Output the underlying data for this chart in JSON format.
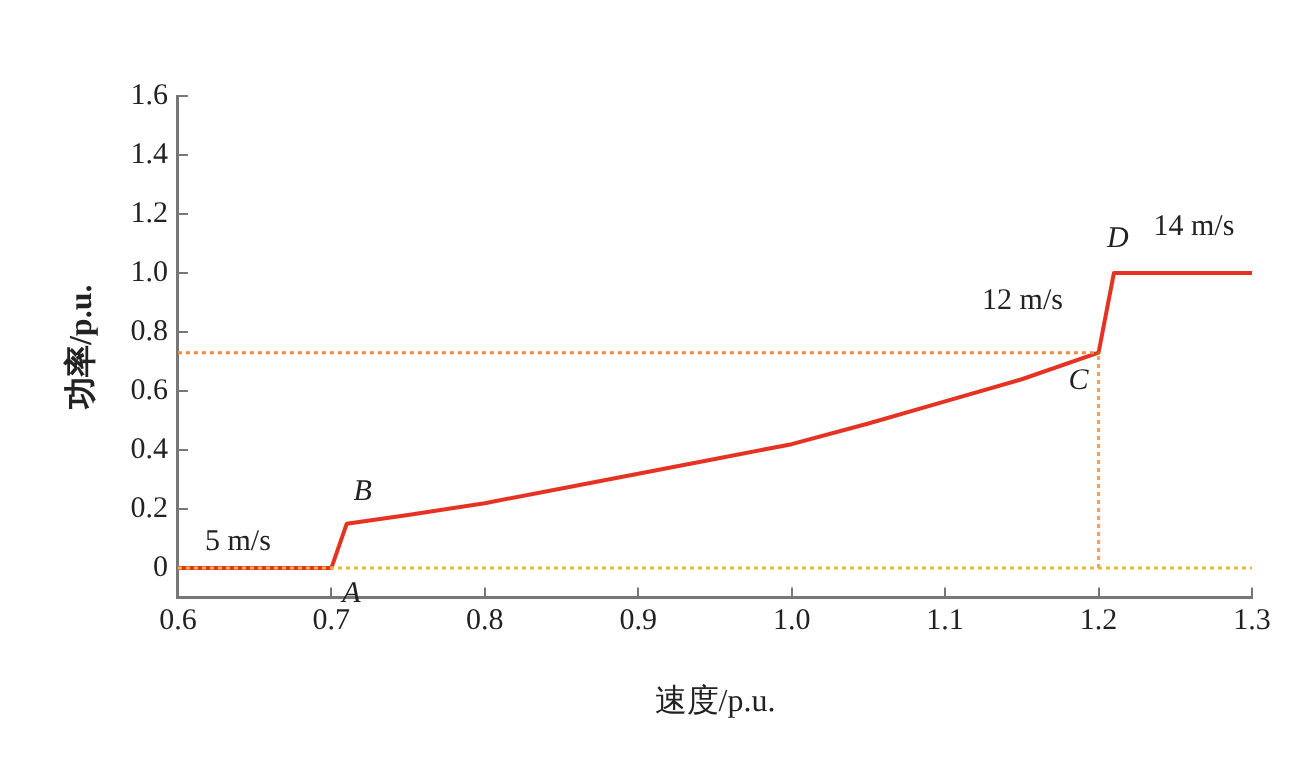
{
  "chart_data": {
    "type": "line",
    "xlabel": "速度/p.u.",
    "ylabel": "功率/p.u.",
    "xlim": [
      0.6,
      1.3
    ],
    "xticks": [
      0.6,
      0.7,
      0.8,
      0.9,
      {
        "value": 1,
        "label": "1.0"
      },
      1.1,
      1.2,
      1.3
    ],
    "ylim": [
      -0.1,
      1.6
    ],
    "yticks": [
      0,
      0.2,
      0.4,
      0.6,
      0.8,
      {
        "value": 1,
        "label": "1.0"
      },
      1.2,
      1.4,
      1.6
    ],
    "grid": false,
    "legend": false,
    "marker": "none",
    "series": [
      {
        "color": "#f0b43c",
        "line_style": "dotted",
        "x": [
          0.6,
          1.3
        ],
        "values": [
          0,
          0
        ]
      },
      {
        "color": "#f08a3c",
        "line_style": "dotted",
        "x": [
          0.6,
          1.2
        ],
        "values": [
          0.73,
          0.73
        ]
      },
      {
        "color": "#f0a060",
        "line_style": "dotted",
        "x": [
          1.2,
          1.2
        ],
        "values": [
          0,
          0.73
        ]
      },
      {
        "color": "#e53222",
        "line_style": "solid",
        "x": [
          0.6,
          0.7,
          0.71,
          0.75,
          0.8,
          0.85,
          0.9,
          0.95,
          1.0,
          1.05,
          1.1,
          1.15,
          1.2,
          1.21,
          1.3
        ],
        "values": [
          0,
          0,
          0.15,
          0.18,
          0.22,
          0.27,
          0.32,
          0.37,
          0.42,
          0.49,
          0.565,
          0.64,
          0.73,
          1.0,
          1.0
        ]
      }
    ],
    "annotations": [
      {
        "text": "5 m/s",
        "x": 0.6,
        "y": 0
      },
      {
        "text": "A",
        "x": 0.7,
        "y": 0
      },
      {
        "text": "B",
        "x": 0.71,
        "y": 0.15
      },
      {
        "text": "12 m/s",
        "x": 1.2,
        "y": 0.73
      },
      {
        "text": "C",
        "x": 1.2,
        "y": 0.73
      },
      {
        "text": "D",
        "x": 1.21,
        "y": 1.0
      },
      {
        "text": "14 m/s",
        "x": 1.21,
        "y": 1.0
      }
    ]
  }
}
